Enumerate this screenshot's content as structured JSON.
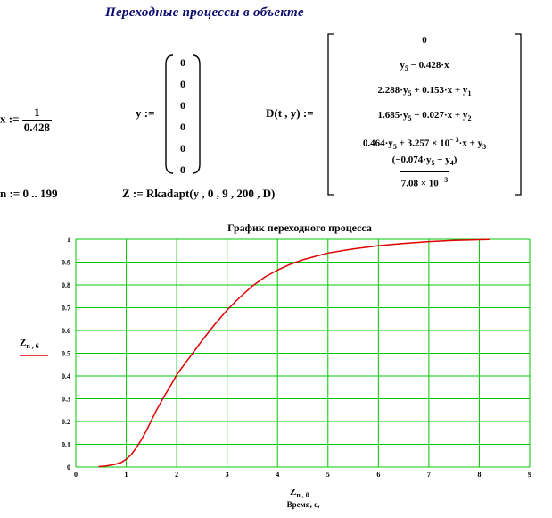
{
  "doc": {
    "title": "Переходные  процессы  в  объекте",
    "x_lhs": "x :=",
    "x_num": "1",
    "x_den": "0.428",
    "y_lhs": "y :=",
    "y_vector": [
      "0",
      "0",
      "0",
      "0",
      "0",
      "0"
    ],
    "D_lhs": "D(t , y) :=",
    "D_rows": {
      "r0": "0",
      "r1_a": "y",
      "r1_sub": "5",
      "r1_b": " − 0.428·x",
      "r2_a": "2.288·y",
      "r2_sub1": "5",
      "r2_b": " + 0.153·x + y",
      "r2_sub2": "1",
      "r3_a": "1.685·y",
      "r3_sub1": "5",
      "r3_b": " − 0.027·x + y",
      "r3_sub2": "2",
      "r4_a": "0.464·y",
      "r4_sub1": "5",
      "r4_b": " + 3.257 × 10",
      "r4_sup": "− 3",
      "r4_c": "·x + y",
      "r4_sub2": "3",
      "r5_num_a": "(−0.074·y",
      "r5_num_sub1": "5",
      "r5_num_b": " − y",
      "r5_num_sub2": "4",
      "r5_num_c": ")",
      "r5_den_a": "7.08 × 10",
      "r5_den_sup": "− 3"
    },
    "n_def": "n := 0 .. 199",
    "Z_def": "Z := Rkadapt(y , 0 , 9 , 200 , D)"
  },
  "chart_data": {
    "type": "line",
    "title": "График переходного процесса",
    "ylabel": "Z",
    "ylabel_sub": "n , 6",
    "xlabel": "Z",
    "xlabel_sub": "n , 0",
    "xlabel_line2": "Время, с,",
    "xlim": [
      0,
      9
    ],
    "ylim": [
      0,
      1
    ],
    "xticks": [
      "0",
      "1",
      "2",
      "3",
      "4",
      "5",
      "6",
      "7",
      "8",
      "9"
    ],
    "yticks": [
      "0",
      "0.1",
      "0.2",
      "0.3",
      "0.4",
      "0.5",
      "0.6",
      "0.7",
      "0.8",
      "0.9",
      "1"
    ],
    "grid": true,
    "colors": {
      "grid": "#00c800",
      "line": "#e00000"
    },
    "series": [
      {
        "x": [
          0.45,
          0.6,
          0.75,
          0.9,
          1.0,
          1.1,
          1.2,
          1.3,
          1.4,
          1.5,
          1.6,
          1.75,
          1.9,
          2.0,
          2.25,
          2.5,
          2.75,
          3.0,
          3.25,
          3.5,
          3.75,
          4.0,
          4.25,
          4.5,
          4.75,
          5.0,
          5.5,
          6.0,
          6.5,
          7.0,
          7.5,
          8.0,
          8.2
        ],
        "y": [
          0.002,
          0.005,
          0.01,
          0.02,
          0.035,
          0.055,
          0.085,
          0.12,
          0.16,
          0.205,
          0.25,
          0.31,
          0.365,
          0.405,
          0.48,
          0.555,
          0.625,
          0.69,
          0.745,
          0.795,
          0.835,
          0.865,
          0.89,
          0.91,
          0.925,
          0.94,
          0.958,
          0.972,
          0.982,
          0.99,
          0.995,
          0.998,
          0.999
        ]
      }
    ]
  }
}
